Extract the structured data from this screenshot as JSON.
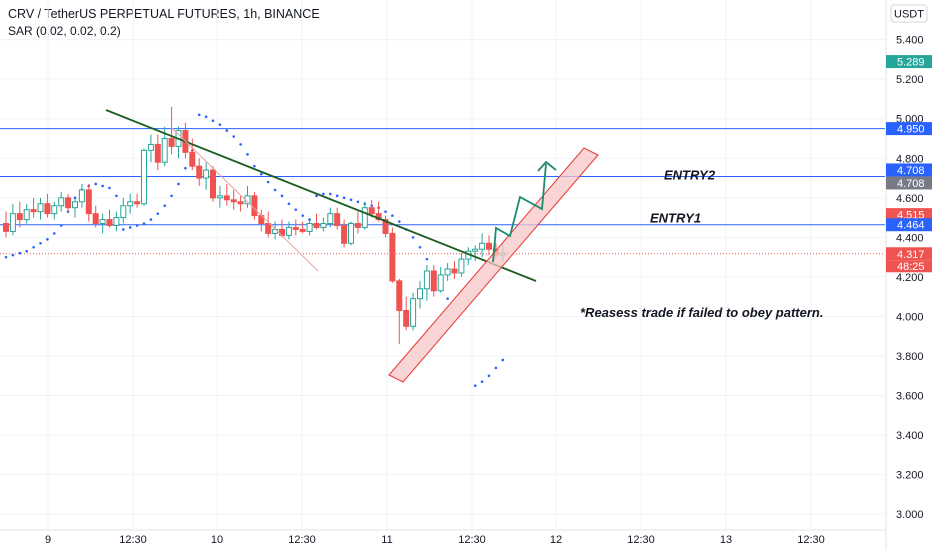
{
  "header": {
    "title": "CRV / TetherUS PERPETUAL FUTURES, 1h, BINANCE",
    "indicator": "SAR (0.02, 0.02, 0.2)",
    "currency": "USDT"
  },
  "colors": {
    "up": "#26a69a",
    "down": "#ef5350",
    "sar": "#2962ff",
    "level": "#2962ff",
    "trend": "#1b5e20",
    "channel_fill": "#f8c7c7",
    "channel_edge": "#e53935",
    "projection": "#1e8a6e",
    "last_price": "#ef5350",
    "current_price_badge": "#26a69a",
    "grey_badge": "#787b86"
  },
  "chart_data": {
    "type": "candlestick",
    "title": "CRV / TetherUS PERPETUAL FUTURES, 1h, BINANCE",
    "interval": "1h",
    "ylim": [
      2.92,
      5.56
    ],
    "y_ticks": [
      "5.400",
      "5.200",
      "5.000",
      "4.800",
      "4.600",
      "4.400",
      "4.200",
      "4.000",
      "3.800",
      "3.600",
      "3.400",
      "3.200",
      "3.000"
    ],
    "x_ticks": [
      "9",
      "12:30",
      "10",
      "12:30",
      "11",
      "12:30",
      "12",
      "12:30",
      "13",
      "12:30"
    ],
    "candles": [
      [
        4.47,
        4.53,
        4.4,
        4.43
      ],
      [
        4.43,
        4.57,
        4.41,
        4.52
      ],
      [
        4.52,
        4.58,
        4.45,
        4.49
      ],
      [
        4.49,
        4.57,
        4.47,
        4.54
      ],
      [
        4.54,
        4.6,
        4.5,
        4.53
      ],
      [
        4.53,
        4.6,
        4.49,
        4.57
      ],
      [
        4.57,
        4.62,
        4.5,
        4.52
      ],
      [
        4.52,
        4.58,
        4.49,
        4.56
      ],
      [
        4.56,
        4.63,
        4.53,
        4.6
      ],
      [
        4.6,
        4.62,
        4.53,
        4.55
      ],
      [
        4.55,
        4.6,
        4.5,
        4.58
      ],
      [
        4.58,
        4.67,
        4.55,
        4.64
      ],
      [
        4.64,
        4.67,
        4.48,
        4.52
      ],
      [
        4.52,
        4.56,
        4.45,
        4.47
      ],
      [
        4.47,
        4.52,
        4.42,
        4.49
      ],
      [
        4.49,
        4.54,
        4.45,
        4.46
      ],
      [
        4.46,
        4.53,
        4.43,
        4.5
      ],
      [
        4.5,
        4.6,
        4.47,
        4.56
      ],
      [
        4.56,
        4.62,
        4.52,
        4.58
      ],
      [
        4.58,
        4.62,
        4.55,
        4.57
      ],
      [
        4.57,
        4.85,
        4.56,
        4.84
      ],
      [
        4.84,
        4.92,
        4.78,
        4.87
      ],
      [
        4.87,
        4.92,
        4.74,
        4.78
      ],
      [
        4.78,
        4.96,
        4.76,
        4.9
      ],
      [
        4.9,
        5.06,
        4.82,
        4.86
      ],
      [
        4.86,
        4.96,
        4.8,
        4.94
      ],
      [
        4.94,
        4.98,
        4.8,
        4.83
      ],
      [
        4.83,
        4.9,
        4.74,
        4.76
      ],
      [
        4.76,
        4.8,
        4.66,
        4.7
      ],
      [
        4.7,
        4.78,
        4.64,
        4.74
      ],
      [
        4.74,
        4.76,
        4.58,
        4.6
      ],
      [
        4.6,
        4.66,
        4.55,
        4.61
      ],
      [
        4.61,
        4.67,
        4.56,
        4.59
      ],
      [
        4.59,
        4.64,
        4.54,
        4.58
      ],
      [
        4.58,
        4.61,
        4.53,
        4.57
      ],
      [
        4.57,
        4.66,
        4.55,
        4.61
      ],
      [
        4.61,
        4.63,
        4.49,
        4.51
      ],
      [
        4.51,
        4.54,
        4.43,
        4.47
      ],
      [
        4.47,
        4.53,
        4.4,
        4.42
      ],
      [
        4.42,
        4.48,
        4.39,
        4.44
      ],
      [
        4.44,
        4.49,
        4.4,
        4.41
      ],
      [
        4.41,
        4.48,
        4.39,
        4.45
      ],
      [
        4.45,
        4.49,
        4.41,
        4.44
      ],
      [
        4.44,
        4.48,
        4.42,
        4.43
      ],
      [
        4.43,
        4.49,
        4.41,
        4.47
      ],
      [
        4.47,
        4.52,
        4.44,
        4.45
      ],
      [
        4.45,
        4.5,
        4.43,
        4.47
      ],
      [
        4.47,
        4.55,
        4.45,
        4.52
      ],
      [
        4.52,
        4.55,
        4.44,
        4.46
      ],
      [
        4.46,
        4.49,
        4.35,
        4.37
      ],
      [
        4.37,
        4.48,
        4.36,
        4.47
      ],
      [
        4.47,
        4.53,
        4.42,
        4.45
      ],
      [
        4.45,
        4.58,
        4.44,
        4.55
      ],
      [
        4.55,
        4.59,
        4.5,
        4.52
      ],
      [
        4.52,
        4.58,
        4.48,
        4.49
      ],
      [
        4.49,
        4.51,
        4.4,
        4.42
      ],
      [
        4.42,
        4.45,
        4.17,
        4.18
      ],
      [
        4.18,
        4.19,
        3.86,
        4.03
      ],
      [
        4.03,
        4.1,
        3.93,
        3.95
      ],
      [
        3.95,
        4.12,
        3.93,
        4.09
      ],
      [
        4.09,
        4.18,
        4.04,
        4.14
      ],
      [
        4.14,
        4.26,
        4.08,
        4.23
      ],
      [
        4.23,
        4.26,
        4.1,
        4.13
      ],
      [
        4.13,
        4.25,
        4.12,
        4.21
      ],
      [
        4.21,
        4.27,
        4.18,
        4.24
      ],
      [
        4.24,
        4.28,
        4.19,
        4.22
      ],
      [
        4.22,
        4.32,
        4.2,
        4.29
      ],
      [
        4.29,
        4.35,
        4.26,
        4.33
      ],
      [
        4.33,
        4.36,
        4.28,
        4.34
      ],
      [
        4.34,
        4.42,
        4.3,
        4.37
      ],
      [
        4.37,
        4.41,
        4.31,
        4.34
      ],
      [
        4.34,
        4.37,
        4.29,
        4.31
      ],
      [
        4.31,
        4.37,
        4.28,
        4.32
      ]
    ],
    "sar": [
      4.3,
      4.31,
      4.32,
      4.33,
      4.35,
      4.37,
      4.39,
      4.42,
      4.46,
      4.53,
      4.6,
      4.64,
      4.66,
      4.67,
      4.66,
      4.65,
      4.61,
      4.44,
      4.45,
      4.46,
      4.47,
      4.49,
      4.52,
      4.56,
      4.61,
      4.67,
      4.75,
      4.84,
      5.02,
      5.01,
      4.99,
      4.97,
      4.94,
      4.91,
      4.87,
      4.82,
      4.76,
      4.72,
      4.68,
      4.64,
      4.61,
      4.57,
      4.54,
      4.51,
      4.49,
      4.61,
      4.62,
      4.62,
      4.61,
      4.6,
      4.59,
      4.58,
      4.57,
      4.56,
      4.55,
      4.53,
      4.51,
      4.48,
      4.44,
      4.4,
      4.35,
      4.29,
      4.22,
      4.15,
      4.09,
      3.65,
      3.67,
      3.7,
      3.74,
      3.78,
      3.84
    ],
    "levels": [
      {
        "value": 4.95,
        "label": "4.950"
      },
      {
        "value": 4.708,
        "label": "ENTRY2"
      },
      {
        "value": 4.464,
        "label": "ENTRY1"
      }
    ],
    "last_price": 4.317,
    "countdown": "48:25",
    "price_badges": [
      {
        "value": 5.289,
        "label": "5.289",
        "kind": "current"
      },
      {
        "value": 4.95,
        "label": "4.950",
        "kind": "level"
      },
      {
        "value": 4.708,
        "label": "4.708",
        "kind": "level"
      },
      {
        "value": 4.708,
        "label": "4.708",
        "kind": "grey"
      },
      {
        "value": 4.515,
        "label": "4.515",
        "kind": "last"
      },
      {
        "value": 4.464,
        "label": "4.464",
        "kind": "level"
      },
      {
        "value": 4.317,
        "label": "4.317",
        "kind": "last"
      }
    ],
    "trendline": {
      "from": [
        5,
        5.1
      ],
      "to": [
        62,
        4.21
      ]
    },
    "annotations": [
      {
        "text": "ENTRY2",
        "level": 4.708
      },
      {
        "text": "ENTRY1",
        "level": 4.464
      },
      {
        "text": "*Reasess trade if failed to obey pattern."
      }
    ]
  }
}
